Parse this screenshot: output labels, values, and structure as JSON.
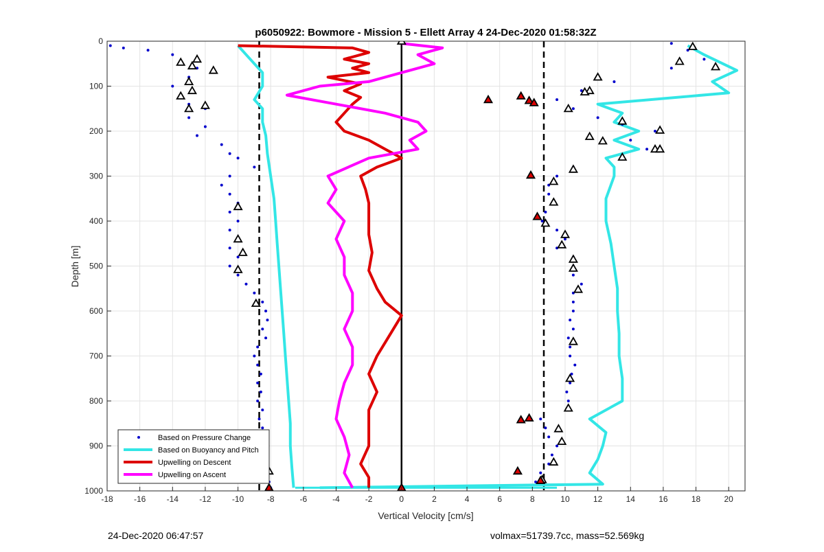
{
  "chart_data": {
    "type": "scatter",
    "title": "p6050922: Bowmore - Mission 5 - Ellett Array 4 24-Dec-2020 01:58:32Z",
    "xlabel": "Vertical Velocity [cm/s]",
    "ylabel": "Depth [m]",
    "xlim": [
      -18,
      21
    ],
    "ylim": [
      1000,
      0
    ],
    "y_reversed": true,
    "grid": true,
    "legend_position": "bottom-left",
    "x_ticks": [
      -18,
      -16,
      -14,
      -12,
      -10,
      -8,
      -6,
      -4,
      -2,
      0,
      2,
      4,
      6,
      8,
      10,
      12,
      14,
      16,
      18,
      20
    ],
    "y_ticks": [
      0,
      100,
      200,
      300,
      400,
      500,
      600,
      700,
      800,
      900,
      1000
    ],
    "series": [
      {
        "name": "Based on Pressure Change",
        "style": "dots",
        "color": "#0000cc",
        "descent_points": [
          [
            -17.8,
            10
          ],
          [
            -17,
            15
          ],
          [
            -15.5,
            20
          ],
          [
            -14,
            30
          ],
          [
            -13.5,
            50
          ],
          [
            -12.5,
            60
          ],
          [
            -13,
            80
          ],
          [
            -14,
            100
          ],
          [
            -13.5,
            120
          ],
          [
            -13,
            140
          ],
          [
            -12,
            150
          ],
          [
            -13,
            170
          ],
          [
            -12,
            190
          ],
          [
            -12.5,
            210
          ],
          [
            -11,
            230
          ],
          [
            -10.5,
            250
          ],
          [
            -10,
            260
          ],
          [
            -9,
            280
          ],
          [
            -10.5,
            300
          ],
          [
            -11,
            320
          ],
          [
            -10.5,
            340
          ],
          [
            -10,
            360
          ],
          [
            -10.5,
            380
          ],
          [
            -10,
            400
          ],
          [
            -10.5,
            420
          ],
          [
            -10,
            440
          ],
          [
            -10.5,
            460
          ],
          [
            -10,
            480
          ],
          [
            -10.5,
            500
          ],
          [
            -10,
            520
          ],
          [
            -9.5,
            540
          ],
          [
            -9,
            560
          ],
          [
            -8.5,
            580
          ],
          [
            -8.3,
            600
          ],
          [
            -8.2,
            620
          ],
          [
            -8.5,
            640
          ],
          [
            -8.3,
            660
          ],
          [
            -8.8,
            680
          ],
          [
            -9,
            700
          ],
          [
            -8.8,
            720
          ],
          [
            -8.6,
            740
          ],
          [
            -8.8,
            760
          ],
          [
            -8.6,
            780
          ],
          [
            -8.8,
            800
          ],
          [
            -8.5,
            820
          ],
          [
            -8.7,
            840
          ],
          [
            -8.5,
            860
          ],
          [
            -8.6,
            880
          ],
          [
            -8.4,
            900
          ],
          [
            -8.5,
            920
          ],
          [
            -8.3,
            940
          ],
          [
            -8.2,
            960
          ],
          [
            -8.1,
            980
          ],
          [
            -8.1,
            993
          ]
        ],
        "ascent_points": [
          [
            16.5,
            5
          ],
          [
            17.5,
            20
          ],
          [
            18.5,
            40
          ],
          [
            16.5,
            60
          ],
          [
            13,
            90
          ],
          [
            11,
            110
          ],
          [
            9.5,
            130
          ],
          [
            10.5,
            150
          ],
          [
            12,
            170
          ],
          [
            13.5,
            185
          ],
          [
            15.5,
            200
          ],
          [
            14,
            220
          ],
          [
            15,
            240
          ],
          [
            13.5,
            260
          ],
          [
            10.5,
            280
          ],
          [
            9.5,
            300
          ],
          [
            9,
            320
          ],
          [
            9,
            340
          ],
          [
            9.2,
            360
          ],
          [
            8.8,
            380
          ],
          [
            8.6,
            400
          ],
          [
            9.5,
            420
          ],
          [
            10,
            440
          ],
          [
            9.5,
            460
          ],
          [
            10.5,
            480
          ],
          [
            10.5,
            500
          ],
          [
            10.5,
            520
          ],
          [
            11,
            540
          ],
          [
            10.5,
            560
          ],
          [
            10.5,
            580
          ],
          [
            10.5,
            600
          ],
          [
            10.3,
            620
          ],
          [
            10.5,
            640
          ],
          [
            10.2,
            660
          ],
          [
            10.3,
            680
          ],
          [
            10.3,
            700
          ],
          [
            10.6,
            720
          ],
          [
            10.4,
            740
          ],
          [
            10.3,
            760
          ],
          [
            10.1,
            780
          ],
          [
            10.2,
            800
          ],
          [
            10.3,
            820
          ],
          [
            8.5,
            840
          ],
          [
            8.8,
            860
          ],
          [
            9,
            880
          ],
          [
            9.5,
            900
          ],
          [
            9.2,
            920
          ],
          [
            9,
            940
          ],
          [
            8.5,
            960
          ],
          [
            8.2,
            980
          ],
          [
            -8,
            993
          ]
        ]
      },
      {
        "name": "Based on Buoyancy and Pitch",
        "style": "line",
        "color": "#33e6e6",
        "descent_points": [
          [
            -10,
            10
          ],
          [
            -9.5,
            30
          ],
          [
            -9,
            50
          ],
          [
            -8.5,
            70
          ],
          [
            -8.5,
            100
          ],
          [
            -9,
            130
          ],
          [
            -8.5,
            150
          ],
          [
            -8.5,
            180
          ],
          [
            -8.3,
            210
          ],
          [
            -8.2,
            250
          ],
          [
            -8,
            300
          ],
          [
            -7.8,
            350
          ],
          [
            -7.7,
            400
          ],
          [
            -7.6,
            450
          ],
          [
            -7.5,
            500
          ],
          [
            -7.4,
            550
          ],
          [
            -7.3,
            600
          ],
          [
            -7.2,
            650
          ],
          [
            -7.1,
            700
          ],
          [
            -7,
            750
          ],
          [
            -6.9,
            800
          ],
          [
            -6.8,
            850
          ],
          [
            -6.8,
            900
          ],
          [
            -6.7,
            950
          ],
          [
            -6.6,
            993
          ]
        ],
        "ascent_points": [
          [
            17.5,
            10
          ],
          [
            18.5,
            30
          ],
          [
            20.5,
            65
          ],
          [
            19,
            90
          ],
          [
            20,
            115
          ],
          [
            12,
            140
          ],
          [
            13.5,
            160
          ],
          [
            13,
            180
          ],
          [
            14.5,
            200
          ],
          [
            13,
            220
          ],
          [
            14.5,
            240
          ],
          [
            12.5,
            260
          ],
          [
            13,
            280
          ],
          [
            13,
            300
          ],
          [
            12.5,
            350
          ],
          [
            12.5,
            400
          ],
          [
            12.8,
            450
          ],
          [
            13,
            500
          ],
          [
            13.2,
            550
          ],
          [
            13.2,
            600
          ],
          [
            13.3,
            650
          ],
          [
            13.3,
            700
          ],
          [
            13.5,
            750
          ],
          [
            13.5,
            800
          ],
          [
            11.5,
            840
          ],
          [
            12.5,
            870
          ],
          [
            12.3,
            900
          ],
          [
            12,
            930
          ],
          [
            11.5,
            960
          ],
          [
            12.3,
            985
          ],
          [
            -5,
            993
          ]
        ]
      },
      {
        "name": "Upwelling on Descent",
        "style": "line",
        "color": "#dd0000",
        "points": [
          [
            -10,
            10
          ],
          [
            -3,
            15
          ],
          [
            -2,
            25
          ],
          [
            -3.5,
            40
          ],
          [
            -2,
            50
          ],
          [
            -3,
            60
          ],
          [
            -2,
            70
          ],
          [
            -4.5,
            80
          ],
          [
            -2.5,
            95
          ],
          [
            -3.5,
            110
          ],
          [
            -2.5,
            125
          ],
          [
            -3,
            140
          ],
          [
            -3.5,
            160
          ],
          [
            -4,
            180
          ],
          [
            -3.5,
            200
          ],
          [
            -2,
            220
          ],
          [
            -1,
            240
          ],
          [
            0,
            260
          ],
          [
            -1.5,
            280
          ],
          [
            -2.5,
            300
          ],
          [
            -2.2,
            330
          ],
          [
            -2,
            360
          ],
          [
            -2,
            400
          ],
          [
            -2,
            430
          ],
          [
            -1.8,
            470
          ],
          [
            -2,
            510
          ],
          [
            -1.5,
            550
          ],
          [
            -1,
            580
          ],
          [
            0,
            610
          ],
          [
            -0.5,
            640
          ],
          [
            -1,
            670
          ],
          [
            -1.5,
            700
          ],
          [
            -2,
            740
          ],
          [
            -1.5,
            780
          ],
          [
            -2,
            820
          ],
          [
            -2,
            860
          ],
          [
            -2,
            900
          ],
          [
            -2.5,
            940
          ],
          [
            -2,
            970
          ],
          [
            -2,
            993
          ]
        ]
      },
      {
        "name": "Upwelling on Ascent",
        "style": "line",
        "color": "#ff00ff",
        "points": [
          [
            0,
            5
          ],
          [
            2.5,
            15
          ],
          [
            1,
            30
          ],
          [
            2,
            50
          ],
          [
            0,
            70
          ],
          [
            -2,
            90
          ],
          [
            -5,
            100
          ],
          [
            -7,
            120
          ],
          [
            -4,
            140
          ],
          [
            -1,
            160
          ],
          [
            1,
            180
          ],
          [
            1.5,
            200
          ],
          [
            0.5,
            220
          ],
          [
            1,
            240
          ],
          [
            -2,
            260
          ],
          [
            -4.5,
            300
          ],
          [
            -4,
            330
          ],
          [
            -4.5,
            360
          ],
          [
            -3.5,
            400
          ],
          [
            -4,
            440
          ],
          [
            -3.5,
            480
          ],
          [
            -3.5,
            520
          ],
          [
            -3,
            560
          ],
          [
            -3,
            600
          ],
          [
            -3.5,
            640
          ],
          [
            -3,
            680
          ],
          [
            -3,
            720
          ],
          [
            -3.5,
            760
          ],
          [
            -3.8,
            800
          ],
          [
            -4,
            840
          ],
          [
            -3.5,
            880
          ],
          [
            -3.2,
            920
          ],
          [
            -3.5,
            960
          ],
          [
            -3,
            993
          ]
        ]
      }
    ],
    "reference_lines": [
      {
        "x": -8.7,
        "style": "dashed",
        "color": "#000000"
      },
      {
        "x": 8.7,
        "style": "dashed",
        "color": "#000000"
      },
      {
        "x": 0,
        "style": "solid",
        "color": "#000000"
      }
    ],
    "horizontal_segment": {
      "x_start": -6.5,
      "x_end": 9.5,
      "y": 993,
      "color": "#33e6e6"
    },
    "markers_triangle_red": [
      [
        5.3,
        130
      ],
      [
        7.3,
        122
      ],
      [
        7.8,
        132
      ],
      [
        8.1,
        137
      ],
      [
        7.9,
        298
      ],
      [
        8.3,
        390
      ],
      [
        7.3,
        842
      ],
      [
        7.8,
        838
      ],
      [
        7.1,
        956
      ],
      [
        8.5,
        977
      ],
      [
        -8.1,
        993
      ],
      [
        0,
        993
      ]
    ],
    "markers_triangle_white": [
      [
        0,
        0
      ],
      [
        -13.5,
        47
      ],
      [
        -12.5,
        40
      ],
      [
        -12.8,
        55
      ],
      [
        -11.5,
        65
      ],
      [
        -13,
        90
      ],
      [
        -12.8,
        110
      ],
      [
        -13.5,
        122
      ],
      [
        -12,
        143
      ],
      [
        -13,
        150
      ],
      [
        17.8,
        12
      ],
      [
        17,
        45
      ],
      [
        19.2,
        57
      ],
      [
        12,
        80
      ],
      [
        11.5,
        110
      ],
      [
        11.2,
        113
      ],
      [
        10.2,
        150
      ],
      [
        13.5,
        178
      ],
      [
        15.8,
        198
      ],
      [
        11.5,
        212
      ],
      [
        12.3,
        222
      ],
      [
        15.5,
        240
      ],
      [
        15.8,
        240
      ],
      [
        13.5,
        258
      ],
      [
        10.5,
        285
      ],
      [
        9.3,
        312
      ],
      [
        9.3,
        358
      ],
      [
        8.8,
        405
      ],
      [
        10,
        430
      ],
      [
        9.8,
        453
      ],
      [
        10.5,
        485
      ],
      [
        10.5,
        505
      ],
      [
        10.8,
        552
      ],
      [
        10.5,
        668
      ],
      [
        10.3,
        750
      ],
      [
        10.2,
        816
      ],
      [
        9.6,
        862
      ],
      [
        9.8,
        890
      ],
      [
        9.3,
        936
      ],
      [
        8.6,
        975
      ],
      [
        -10,
        368
      ],
      [
        -10,
        440
      ],
      [
        -9.7,
        470
      ],
      [
        -10,
        508
      ],
      [
        -8.9,
        583
      ],
      [
        -8.1,
        956
      ]
    ]
  },
  "footer": {
    "left": "24-Dec-2020 06:47:57",
    "right": "volmax=51739.7cc, mass=52.569kg"
  }
}
